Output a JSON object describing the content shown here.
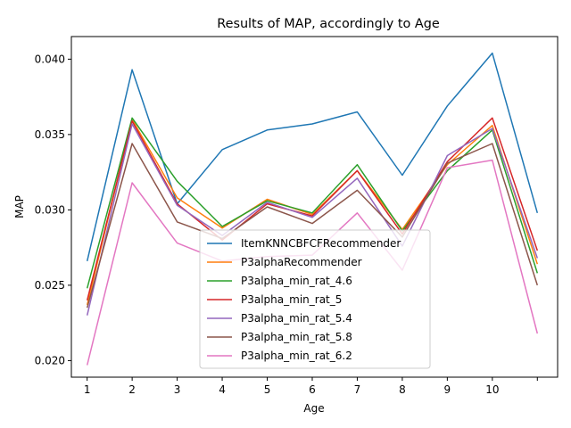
{
  "chart_data": {
    "type": "line",
    "title": "Results of MAP, accordingly to Age",
    "xlabel": "Age",
    "ylabel": "MAP",
    "x": [
      1,
      2,
      3,
      4,
      5,
      6,
      7,
      8,
      9,
      10,
      11
    ],
    "xtick_labels": [
      "1",
      "2",
      "3",
      "4",
      "5",
      "6",
      "7",
      "8",
      "9",
      "10",
      ""
    ],
    "yticks": [
      0.02,
      0.025,
      0.03,
      0.035,
      0.04
    ],
    "ytick_labels": [
      "0.020",
      "0.025",
      "0.030",
      "0.035",
      "0.040"
    ],
    "xlim": [
      0.65,
      11.45
    ],
    "ylim": [
      0.0189,
      0.0415
    ],
    "grid": false,
    "legend_position": "lower center",
    "series": [
      {
        "name": "ItemKNNCBFCFRecommender",
        "color": "#1f77b4",
        "values": [
          0.0266,
          0.0393,
          0.0304,
          0.034,
          0.0353,
          0.0357,
          0.0365,
          0.0323,
          0.0369,
          0.0404,
          0.0298
        ]
      },
      {
        "name": "P3alphaRecommender",
        "color": "#ff7f0e",
        "values": [
          0.0237,
          0.036,
          0.0308,
          0.0288,
          0.0307,
          0.0297,
          0.0326,
          0.0287,
          0.033,
          0.0356,
          0.0264
        ]
      },
      {
        "name": "P3alpha_min_rat_4.6",
        "color": "#2ca02c",
        "values": [
          0.0248,
          0.0361,
          0.0319,
          0.0289,
          0.0306,
          0.0298,
          0.033,
          0.0286,
          0.0326,
          0.0353,
          0.0258
        ]
      },
      {
        "name": "P3alpha_min_rat_5",
        "color": "#d62728",
        "values": [
          0.024,
          0.0359,
          0.0304,
          0.028,
          0.0304,
          0.0296,
          0.0326,
          0.0284,
          0.0332,
          0.0361,
          0.0273
        ]
      },
      {
        "name": "P3alpha_min_rat_5.4",
        "color": "#9467bd",
        "values": [
          0.023,
          0.0357,
          0.0303,
          0.0283,
          0.0305,
          0.0295,
          0.0321,
          0.0276,
          0.0336,
          0.0354,
          0.0268
        ]
      },
      {
        "name": "P3alpha_min_rat_5.8",
        "color": "#8c564b",
        "values": [
          0.0235,
          0.0344,
          0.0292,
          0.0281,
          0.0302,
          0.0291,
          0.0313,
          0.0282,
          0.0331,
          0.0344,
          0.025
        ]
      },
      {
        "name": "P3alpha_min_rat_6.2",
        "color": "#e377c2",
        "values": [
          0.0197,
          0.0318,
          0.0278,
          0.0266,
          0.0269,
          0.027,
          0.0298,
          0.026,
          0.0328,
          0.0333,
          0.0218
        ]
      }
    ]
  }
}
